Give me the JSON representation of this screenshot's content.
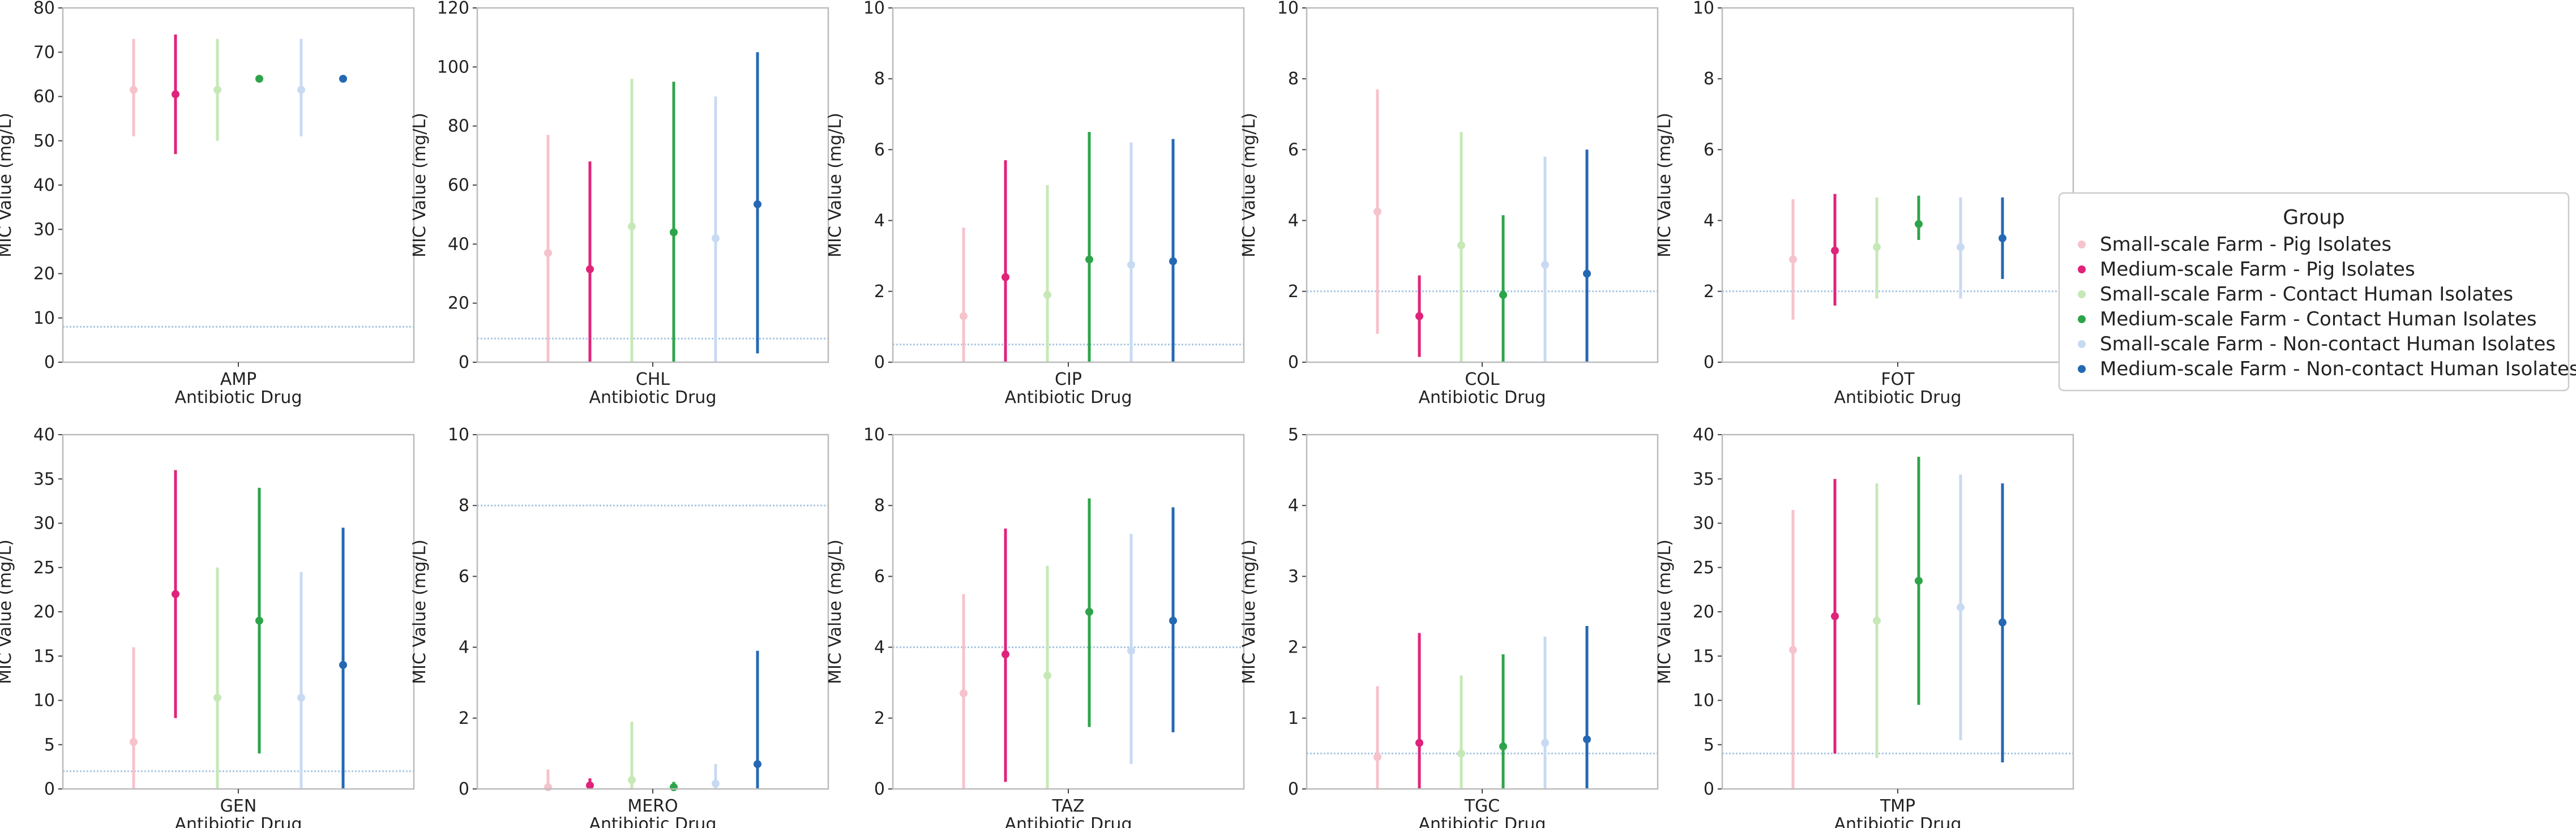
{
  "legend": {
    "title": "Group",
    "placement": "right"
  },
  "groups": [
    {
      "name": "Small-scale Farm - Pig Isolates",
      "color": "#f6c2cb"
    },
    {
      "name": "Medium-scale Farm - Pig Isolates",
      "color": "#e0237a"
    },
    {
      "name": "Small-scale Farm - Contact Human Isolates",
      "color": "#c6e8b7"
    },
    {
      "name": "Medium-scale Farm - Contact Human Isolates",
      "color": "#2ea44a"
    },
    {
      "name": "Small-scale Farm - Non-contact Human Isolates",
      "color": "#c8daf2"
    },
    {
      "name": "Medium-scale Farm - Non-contact Human Isolates",
      "color": "#2468b4"
    }
  ],
  "chart_data": [
    {
      "type": "pointrange",
      "drug": "AMP",
      "xlabel": "Antibiotic Drug",
      "ylabel": "MIC Value (mg/L)",
      "ylim": [
        0,
        80
      ],
      "yticks": [
        0,
        10,
        20,
        30,
        40,
        50,
        60,
        70,
        80
      ],
      "threshold": 8,
      "points": [
        {
          "mean": 61.5,
          "low": 51,
          "high": 73
        },
        {
          "mean": 60.5,
          "low": 47,
          "high": 74
        },
        {
          "mean": 61.5,
          "low": 50,
          "high": 73
        },
        {
          "mean": 64,
          "low": 64,
          "high": 64
        },
        {
          "mean": 61.5,
          "low": 51,
          "high": 73
        },
        {
          "mean": 64,
          "low": 64,
          "high": 64
        }
      ]
    },
    {
      "type": "pointrange",
      "drug": "CHL",
      "xlabel": "Antibiotic Drug",
      "ylabel": "MIC Value (mg/L)",
      "ylim": [
        0,
        120
      ],
      "yticks": [
        0,
        20,
        40,
        60,
        80,
        100,
        120
      ],
      "threshold": 8,
      "points": [
        {
          "mean": 37,
          "low": 0,
          "high": 77
        },
        {
          "mean": 31.5,
          "low": 0,
          "high": 68
        },
        {
          "mean": 46,
          "low": 0,
          "high": 96
        },
        {
          "mean": 44,
          "low": 0,
          "high": 95
        },
        {
          "mean": 42,
          "low": 0,
          "high": 90
        },
        {
          "mean": 53.5,
          "low": 3,
          "high": 105
        }
      ]
    },
    {
      "type": "pointrange",
      "drug": "CIP",
      "xlabel": "Antibiotic Drug",
      "ylabel": "MIC Value (mg/L)",
      "ylim": [
        0,
        10
      ],
      "yticks": [
        0,
        2,
        4,
        6,
        8,
        10
      ],
      "threshold": 0.5,
      "points": [
        {
          "mean": 1.3,
          "low": 0,
          "high": 3.8
        },
        {
          "mean": 2.4,
          "low": 0,
          "high": 5.7
        },
        {
          "mean": 1.9,
          "low": 0,
          "high": 5
        },
        {
          "mean": 2.9,
          "low": 0,
          "high": 6.5
        },
        {
          "mean": 2.75,
          "low": 0,
          "high": 6.2
        },
        {
          "mean": 2.85,
          "low": 0,
          "high": 6.3
        }
      ]
    },
    {
      "type": "pointrange",
      "drug": "COL",
      "xlabel": "Antibiotic Drug",
      "ylabel": "MIC Value (mg/L)",
      "ylim": [
        0,
        10
      ],
      "yticks": [
        0,
        2,
        4,
        6,
        8,
        10
      ],
      "threshold": 2,
      "points": [
        {
          "mean": 4.25,
          "low": 0.8,
          "high": 7.7
        },
        {
          "mean": 1.3,
          "low": 0.15,
          "high": 2.45
        },
        {
          "mean": 3.3,
          "low": 0,
          "high": 6.5
        },
        {
          "mean": 1.9,
          "low": 0,
          "high": 4.15
        },
        {
          "mean": 2.75,
          "low": 0,
          "high": 5.8
        },
        {
          "mean": 2.5,
          "low": 0,
          "high": 6
        }
      ]
    },
    {
      "type": "pointrange",
      "drug": "FOT",
      "xlabel": "Antibiotic Drug",
      "ylabel": "MIC Value (mg/L)",
      "ylim": [
        0,
        10
      ],
      "yticks": [
        0,
        2,
        4,
        6,
        8,
        10
      ],
      "threshold": 2,
      "points": [
        {
          "mean": 2.9,
          "low": 1.2,
          "high": 4.6
        },
        {
          "mean": 3.15,
          "low": 1.6,
          "high": 4.75
        },
        {
          "mean": 3.25,
          "low": 1.8,
          "high": 4.65
        },
        {
          "mean": 3.9,
          "low": 3.45,
          "high": 4.7
        },
        {
          "mean": 3.25,
          "low": 1.8,
          "high": 4.65
        },
        {
          "mean": 3.5,
          "low": 2.35,
          "high": 4.65
        }
      ]
    },
    {
      "type": "pointrange",
      "drug": "GEN",
      "xlabel": "Antibiotic Drug",
      "ylabel": "MIC Value (mg/L)",
      "ylim": [
        0,
        40
      ],
      "yticks": [
        0,
        5,
        10,
        15,
        20,
        25,
        30,
        35,
        40
      ],
      "threshold": 2,
      "points": [
        {
          "mean": 5.3,
          "low": 0,
          "high": 16
        },
        {
          "mean": 22,
          "low": 8,
          "high": 36
        }
      ],
      "points_more": [
        {
          "mean": 10.3,
          "low": 0,
          "high": 25
        },
        {
          "mean": 19,
          "low": 4,
          "high": 34
        },
        {
          "mean": 10.3,
          "low": 0,
          "high": 24.5
        },
        {
          "mean": 14,
          "low": 0,
          "high": 29.5
        }
      ]
    },
    {
      "type": "pointrange",
      "drug": "MERO",
      "xlabel": "Antibiotic Drug",
      "ylabel": "MIC Value (mg/L)",
      "ylim": [
        0,
        10
      ],
      "yticks": [
        0,
        2,
        4,
        6,
        8,
        10
      ],
      "threshold": 8,
      "points": [
        {
          "mean": 0.05,
          "low": 0,
          "high": 0.55
        },
        {
          "mean": 0.1,
          "low": 0,
          "high": 0.3
        },
        {
          "mean": 0.25,
          "low": 0,
          "high": 1.9
        },
        {
          "mean": 0.05,
          "low": 0,
          "high": 0.2
        },
        {
          "mean": 0.15,
          "low": 0,
          "high": 0.7
        },
        {
          "mean": 0.7,
          "low": 0,
          "high": 3.9
        }
      ]
    },
    {
      "type": "pointrange",
      "drug": "TAZ",
      "xlabel": "Antibiotic Drug",
      "ylabel": "MIC Value (mg/L)",
      "ylim": [
        0,
        10
      ],
      "yticks": [
        0,
        2,
        4,
        6,
        8,
        10
      ],
      "threshold": 4,
      "points": [
        {
          "mean": 2.7,
          "low": 0,
          "high": 5.5
        },
        {
          "mean": 3.8,
          "low": 0.2,
          "high": 7.35
        },
        {
          "mean": 3.2,
          "low": 0,
          "high": 6.3
        },
        {
          "mean": 5,
          "low": 1.75,
          "high": 8.2
        },
        {
          "mean": 3.9,
          "low": 0.7,
          "high": 7.2
        },
        {
          "mean": 4.75,
          "low": 1.6,
          "high": 7.95
        }
      ]
    },
    {
      "type": "pointrange",
      "drug": "TGC",
      "xlabel": "Antibiotic Drug",
      "ylabel": "MIC Value (mg/L)",
      "ylim": [
        0,
        5
      ],
      "yticks": [
        0,
        1,
        2,
        3,
        4,
        5
      ],
      "threshold": 0.5,
      "points": [
        {
          "mean": 0.45,
          "low": 0,
          "high": 1.45
        },
        {
          "mean": 0.65,
          "low": 0,
          "high": 2.2
        },
        {
          "mean": 0.5,
          "low": 0,
          "high": 1.6
        },
        {
          "mean": 0.6,
          "low": 0,
          "high": 1.9
        },
        {
          "mean": 0.65,
          "low": 0,
          "high": 2.15
        },
        {
          "mean": 0.7,
          "low": 0,
          "high": 2.3
        }
      ]
    },
    {
      "type": "pointrange",
      "drug": "TMP",
      "xlabel": "Antibiotic Drug",
      "ylabel": "MIC Value (mg/L)",
      "ylim": [
        0,
        40
      ],
      "yticks": [
        0,
        5,
        10,
        15,
        20,
        25,
        30,
        35,
        40
      ],
      "threshold": 4,
      "points": [
        {
          "mean": 15.7,
          "low": 0,
          "high": 31.5
        },
        {
          "mean": 19.5,
          "low": 4,
          "high": 35
        },
        {
          "mean": 19,
          "low": 3.5,
          "high": 34.5
        },
        {
          "mean": 23.5,
          "low": 9.5,
          "high": 37.5
        },
        {
          "mean": 20.5,
          "low": 5.5,
          "high": 35.5
        },
        {
          "mean": 18.8,
          "low": 3,
          "high": 34.5
        }
      ]
    }
  ]
}
